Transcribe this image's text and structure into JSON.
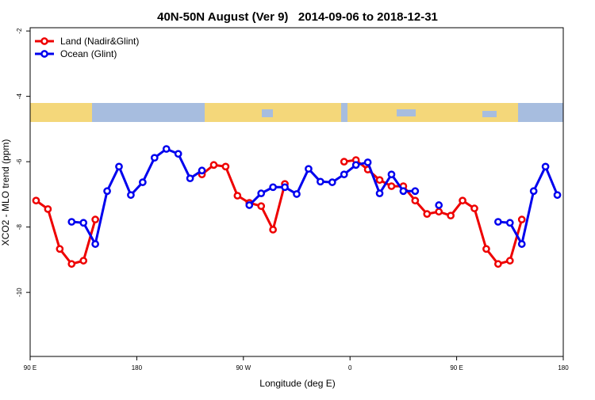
{
  "chart_data": {
    "type": "line",
    "title": "40N-50N August (Ver 9)   2014-09-06 to 2018-12-31",
    "x_label": "Longitude (deg E)",
    "y_label": "XCO2 - MLO trend (ppm)",
    "xlim": [
      90,
      540
    ],
    "xticks": [
      {
        "value": 90,
        "label": "90 E"
      },
      {
        "value": 180,
        "label": "180"
      },
      {
        "value": 270,
        "label": "90 W"
      },
      {
        "value": 360,
        "label": "0"
      },
      {
        "value": 450,
        "label": "90 E"
      },
      {
        "value": 540,
        "label": "180"
      }
    ],
    "ylim": [
      -11.96,
      -1.9
    ],
    "yticks": [
      -2,
      -4,
      -6,
      -8,
      -10
    ],
    "legend": "top-left",
    "series": [
      {
        "name": "Land (Nadir&Glint)",
        "color": "#ee0000",
        "x": [
          95,
          105,
          115,
          125,
          135,
          145,
          155,
          235,
          245,
          255,
          265,
          275,
          285,
          295,
          305,
          315,
          355,
          365,
          375,
          385,
          395,
          405,
          415,
          425,
          435,
          445,
          455,
          465,
          475,
          485,
          495,
          505
        ],
        "values": [
          -7.19,
          -7.45,
          -8.67,
          -9.13,
          -9.03,
          -7.77,
          null,
          -6.39,
          -6.1,
          -6.15,
          -7.04,
          -7.26,
          -7.36,
          -8.08,
          -6.68,
          null,
          -6.0,
          -5.95,
          -6.24,
          -6.56,
          -6.75,
          -6.75,
          -7.19,
          -7.6,
          -7.53,
          -7.65,
          -7.19,
          -7.43,
          -8.67,
          -9.13,
          -9.03,
          -7.77
        ]
      },
      {
        "name": "Ocean (Glint)",
        "color": "#0000ee",
        "x": [
          125,
          135,
          145,
          155,
          165,
          175,
          185,
          195,
          205,
          215,
          225,
          235,
          255,
          275,
          285,
          295,
          305,
          315,
          325,
          335,
          345,
          355,
          365,
          375,
          385,
          395,
          405,
          415,
          425,
          435,
          445,
          485,
          495,
          505,
          515,
          525,
          535
        ],
        "values": [
          -7.84,
          -7.87,
          -8.52,
          -6.9,
          -6.15,
          -7.02,
          -6.63,
          -5.88,
          -5.61,
          -5.76,
          -6.51,
          -6.27,
          null,
          -7.33,
          -6.97,
          -6.78,
          -6.78,
          -6.99,
          -6.22,
          -6.61,
          -6.63,
          -6.39,
          -6.1,
          -6.02,
          -6.97,
          -6.39,
          -6.9,
          -6.9,
          null,
          -7.33,
          null,
          -7.84,
          -7.87,
          -8.52,
          -6.9,
          -6.15,
          -7.02
        ]
      }
    ]
  }
}
